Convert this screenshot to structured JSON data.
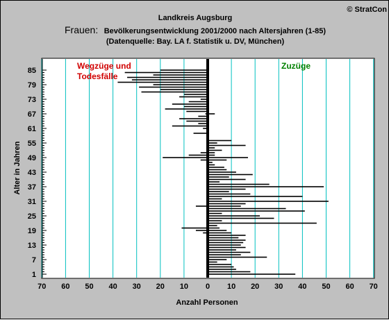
{
  "header": {
    "copyright": "© StratCon",
    "region": "Landkreis Augsburg",
    "subject": "Frauen:",
    "title_rest": "Bevölkerungsentwicklung 2001/2000 nach Altersjahren (1-85)",
    "source": "(Datenquelle: Bay. LA f. Statistik u. DV, München)"
  },
  "colors": {
    "background": "#c0c0c0",
    "plot_area": "#ffffff",
    "gridline": "#00c0c0",
    "bar": "#000000",
    "outflow_label": "#d00000",
    "inflow_label": "#008000"
  },
  "chart_data": {
    "type": "bar",
    "orientation": "horizontal",
    "title": "Bevölkerungsentwicklung 2001/2000 nach Altersjahren (1-85)",
    "xlabel": "Anzahl Personen",
    "ylabel": "Alter in Jahren",
    "xlim": [
      -70,
      70
    ],
    "ylim": [
      1,
      85
    ],
    "xticks": [
      -70,
      -60,
      -50,
      -40,
      -30,
      -20,
      -10,
      0,
      10,
      20,
      30,
      40,
      50,
      60,
      70
    ],
    "xtick_labels": [
      "70",
      "60",
      "50",
      "40",
      "30",
      "20",
      "10",
      "0",
      "10",
      "20",
      "30",
      "40",
      "50",
      "60",
      "70"
    ],
    "yticks": [
      1,
      7,
      13,
      19,
      25,
      31,
      37,
      43,
      49,
      55,
      61,
      67,
      73,
      79,
      85
    ],
    "grid": true,
    "annotations": [
      {
        "text": "Wegzüge und",
        "side": "left"
      },
      {
        "text": "Todesfälle",
        "side": "left"
      },
      {
        "text": "Zuzüge",
        "side": "right"
      }
    ],
    "ages": [
      1,
      2,
      3,
      4,
      5,
      6,
      7,
      8,
      9,
      10,
      11,
      12,
      13,
      14,
      15,
      16,
      17,
      18,
      19,
      20,
      21,
      22,
      23,
      24,
      25,
      26,
      27,
      28,
      29,
      30,
      31,
      32,
      33,
      34,
      35,
      36,
      37,
      38,
      39,
      40,
      41,
      42,
      43,
      44,
      45,
      46,
      47,
      48,
      49,
      50,
      51,
      52,
      53,
      54,
      55,
      56,
      57,
      58,
      59,
      60,
      61,
      62,
      63,
      64,
      65,
      66,
      67,
      68,
      69,
      70,
      71,
      72,
      73,
      74,
      75,
      76,
      77,
      78,
      79,
      80,
      81,
      82,
      83,
      84,
      85
    ],
    "series": [
      {
        "values": [
          37,
          18,
          12,
          11,
          10,
          4,
          8,
          25,
          14,
          18,
          12,
          16,
          14,
          15,
          16,
          13,
          16,
          10,
          8,
          5,
          4,
          46,
          6,
          28,
          22,
          6,
          41,
          33,
          14,
          16,
          51,
          6,
          40,
          18,
          9,
          16,
          49,
          26,
          5,
          16,
          9,
          19,
          12,
          8,
          7,
          3,
          2,
          8,
          17,
          3,
          3,
          6,
          3,
          16,
          4,
          10,
          0,
          0,
          0,
          0,
          0,
          0,
          0,
          0,
          0,
          0,
          3,
          0,
          0,
          0,
          0,
          0,
          0,
          0,
          0,
          0,
          0,
          0,
          0,
          0,
          0,
          0,
          0,
          0,
          0
        ]
      },
      {
        "values": [
          0,
          0,
          0,
          0,
          0,
          0,
          0,
          0,
          0,
          0,
          0,
          0,
          0,
          0,
          0,
          0,
          0,
          2,
          5,
          11,
          0,
          0,
          0,
          0,
          0,
          0,
          0,
          0,
          5,
          0,
          0,
          0,
          0,
          0,
          0,
          0,
          0,
          0,
          0,
          0,
          0,
          0,
          0,
          0,
          0,
          0,
          0,
          3,
          19,
          8,
          3,
          0,
          0,
          0,
          0,
          0,
          0,
          0,
          6,
          0,
          2,
          15,
          4,
          9,
          12,
          4,
          1,
          9,
          18,
          10,
          15,
          8,
          3,
          12,
          10,
          28,
          20,
          29,
          23,
          38,
          32,
          34,
          23,
          35,
          20
        ]
      }
    ]
  }
}
